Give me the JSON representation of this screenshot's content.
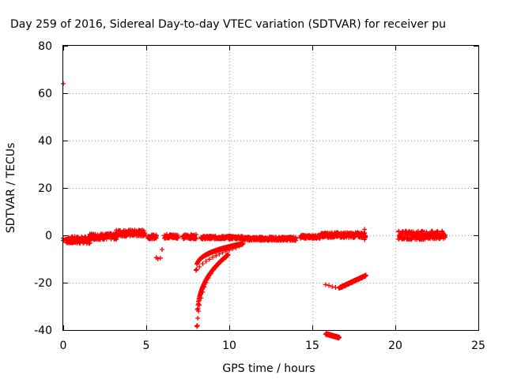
{
  "chart_data": {
    "type": "scatter",
    "title": "Day 259 of 2016, Sidereal Day-to-day VTEC variation (SDTVAR) for receiver pu",
    "xlabel": "GPS time / hours",
    "ylabel": "SDTVAR / TECUs",
    "xlim": [
      0,
      25
    ],
    "ylim": [
      -40,
      80
    ],
    "xticks": [
      0,
      5,
      10,
      15,
      20,
      25
    ],
    "yticks": [
      -40,
      -20,
      0,
      20,
      40,
      60,
      80
    ],
    "xtick_labels": [
      "0",
      "5",
      "10",
      "15",
      "20",
      "25"
    ],
    "ytick_labels": [
      "-40",
      "-20",
      "0",
      "20",
      "40",
      "60",
      "80"
    ],
    "grid": true,
    "legend": "none",
    "marker": "plus",
    "color": "#ff0000",
    "series": [
      {
        "points": [
          [
            0.0,
            64
          ],
          [
            0.0,
            -1.2
          ],
          [
            0.0,
            -2.2
          ],
          [
            0.05,
            -2.0
          ],
          [
            0.15,
            -1.5
          ],
          [
            0.3,
            -2.6
          ],
          [
            0.45,
            -1.2
          ],
          [
            0.6,
            -3.0
          ],
          [
            0.8,
            -2.4
          ],
          [
            1.0,
            -2.9
          ],
          [
            1.2,
            -3.3
          ],
          [
            1.4,
            -2.8
          ],
          [
            1.5,
            -1.8
          ],
          [
            1.7,
            -1.0
          ],
          [
            1.9,
            -0.5
          ],
          [
            2.1,
            -0.8
          ],
          [
            2.3,
            -0.4
          ],
          [
            2.5,
            0.2
          ],
          [
            2.7,
            -0.5
          ],
          [
            2.9,
            -0.2
          ],
          [
            3.1,
            0.3
          ],
          [
            3.3,
            1.2
          ],
          [
            3.5,
            0.5
          ],
          [
            3.7,
            0.8
          ],
          [
            3.9,
            0.3
          ],
          [
            4.1,
            0.9
          ],
          [
            4.3,
            1.4
          ],
          [
            4.5,
            1.1
          ],
          [
            4.7,
            1.6
          ],
          [
            4.85,
            1.9
          ],
          [
            5.2,
            -0.8
          ],
          [
            5.35,
            -1.3
          ],
          [
            5.5,
            -0.6
          ],
          [
            5.6,
            -9.4
          ],
          [
            5.7,
            -9.9
          ],
          [
            5.85,
            -9.6
          ],
          [
            5.95,
            -6.0
          ],
          [
            6.2,
            -0.5
          ],
          [
            6.4,
            -0.2
          ],
          [
            6.6,
            -0.9
          ],
          [
            6.8,
            -0.3
          ],
          [
            7.3,
            -0.6
          ],
          [
            7.5,
            -1.0
          ],
          [
            7.7,
            -0.4
          ],
          [
            7.9,
            -0.8
          ],
          [
            8.4,
            -0.6
          ],
          [
            8.6,
            -0.8
          ],
          [
            8.8,
            -1.0
          ],
          [
            9.0,
            -0.9
          ],
          [
            9.2,
            -1.1
          ],
          [
            9.4,
            -0.9
          ],
          [
            9.6,
            -1.2
          ],
          [
            9.8,
            -1.0
          ],
          [
            10.0,
            -1.3
          ],
          [
            10.2,
            -1.0
          ],
          [
            10.4,
            -1.2
          ],
          [
            10.6,
            -0.8
          ],
          [
            10.8,
            -1.1
          ],
          [
            11.0,
            -0.9
          ],
          [
            11.2,
            -1.3
          ],
          [
            11.4,
            -1.0
          ],
          [
            11.6,
            -1.4
          ],
          [
            11.8,
            -1.2
          ],
          [
            12.0,
            -1.5
          ],
          [
            12.2,
            -1.3
          ],
          [
            12.4,
            -1.6
          ],
          [
            12.6,
            -1.8
          ],
          [
            12.8,
            -1.5
          ],
          [
            13.0,
            -1.4
          ],
          [
            13.2,
            -1.1
          ],
          [
            13.4,
            -0.9
          ],
          [
            13.6,
            -1.2
          ],
          [
            13.8,
            -1.0
          ],
          [
            14.4,
            -0.9
          ],
          [
            14.6,
            -0.7
          ],
          [
            14.8,
            -0.5
          ],
          [
            15.0,
            -0.6
          ],
          [
            15.2,
            -0.4
          ],
          [
            15.4,
            -0.5
          ],
          [
            15.6,
            -0.1
          ],
          [
            15.8,
            0.2
          ],
          [
            16.0,
            -0.2
          ],
          [
            16.2,
            0.3
          ],
          [
            16.4,
            0.1
          ],
          [
            16.6,
            0.4
          ],
          [
            16.8,
            0.2
          ],
          [
            17.0,
            0.5
          ],
          [
            17.2,
            0.3
          ],
          [
            17.4,
            0.6
          ],
          [
            17.6,
            0.4
          ],
          [
            17.8,
            0.8
          ],
          [
            18.0,
            0.7
          ],
          [
            18.15,
            2.5
          ],
          [
            18.15,
            -1.8
          ],
          [
            8.05,
            -38.2
          ],
          [
            8.1,
            -35.0
          ],
          [
            8.15,
            -32.0
          ],
          [
            8.2,
            -29.5
          ],
          [
            8.3,
            -26.5
          ],
          [
            8.4,
            -24.0
          ],
          [
            8.5,
            -21.8
          ],
          [
            8.6,
            -20.0
          ],
          [
            8.75,
            -18.0
          ],
          [
            8.9,
            -16.2
          ],
          [
            9.05,
            -14.6
          ],
          [
            9.2,
            -13.3
          ],
          [
            9.35,
            -12.2
          ],
          [
            9.5,
            -11.1
          ],
          [
            9.65,
            -10.2
          ],
          [
            9.8,
            -9.3
          ],
          [
            8.0,
            -14.6
          ],
          [
            8.2,
            -13.3
          ],
          [
            8.4,
            -12.0
          ],
          [
            8.6,
            -11.0
          ],
          [
            8.8,
            -10.1
          ],
          [
            9.0,
            -9.3
          ],
          [
            9.2,
            -8.6
          ],
          [
            9.4,
            -7.9
          ],
          [
            9.6,
            -7.3
          ],
          [
            9.8,
            -6.7
          ],
          [
            10.0,
            -6.2
          ],
          [
            10.2,
            -5.7
          ],
          [
            10.4,
            -5.2
          ],
          [
            10.6,
            -4.6
          ],
          [
            10.75,
            -4.0
          ],
          [
            15.8,
            -20.8
          ],
          [
            16.0,
            -21.2
          ],
          [
            16.2,
            -21.7
          ],
          [
            16.4,
            -22.0
          ],
          [
            16.6,
            -22.3
          ],
          [
            16.8,
            -22.0
          ],
          [
            17.0,
            -21.4
          ],
          [
            17.2,
            -20.7
          ],
          [
            17.4,
            -20.0
          ],
          [
            17.6,
            -19.3
          ],
          [
            17.8,
            -18.7
          ],
          [
            18.0,
            -18.0
          ],
          [
            18.2,
            -17.3
          ],
          [
            20.2,
            1.5
          ],
          [
            20.4,
            1.2
          ],
          [
            20.6,
            0.8
          ],
          [
            20.8,
            0.3
          ],
          [
            21.0,
            -0.2
          ],
          [
            21.2,
            -0.7
          ],
          [
            21.4,
            -1.3
          ],
          [
            21.6,
            -1.5
          ],
          [
            21.8,
            -1.1
          ],
          [
            22.0,
            -0.9
          ],
          [
            22.2,
            -0.7
          ],
          [
            22.4,
            -0.5
          ],
          [
            22.6,
            -0.3
          ],
          [
            22.8,
            -0.2
          ],
          [
            22.95,
            -0.1
          ]
        ],
        "bands": [
          {
            "x": [
              0.2,
              1.6
            ],
            "y_low": -3.5,
            "y_high": -0.5
          },
          {
            "x": [
              1.6,
              3.2
            ],
            "y_low": -1.8,
            "y_high": 0.8
          },
          {
            "x": [
              3.2,
              4.9
            ],
            "y_low": -0.5,
            "y_high": 2.3
          },
          {
            "x": [
              5.1,
              5.6
            ],
            "y_low": -1.5,
            "y_high": 0.2
          },
          {
            "x": [
              6.1,
              6.9
            ],
            "y_low": -1.3,
            "y_high": 0.5
          },
          {
            "x": [
              7.2,
              8.0
            ],
            "y_low": -1.5,
            "y_high": 0.3
          },
          {
            "x": [
              8.3,
              10.8
            ],
            "y_low": -1.6,
            "y_high": -0.3
          },
          {
            "x": [
              10.8,
              14.0
            ],
            "y_low": -2.2,
            "y_high": -0.7
          },
          {
            "x": [
              14.3,
              15.5
            ],
            "y_low": -1.3,
            "y_high": 0.0
          },
          {
            "x": [
              15.5,
              18.2
            ],
            "y_low": -1.0,
            "y_high": 1.2
          },
          {
            "x": [
              20.2,
              23.0
            ],
            "y_low": -1.8,
            "y_high": 1.8
          }
        ],
        "curves": [
          {
            "x": [
              8.05,
              9.9
            ],
            "y": [
              -38.5,
              -8.5
            ],
            "shape": "sqrt"
          },
          {
            "x": [
              8.0,
              10.8
            ],
            "y": [
              -14.8,
              -3.8
            ],
            "shape": "sqrt"
          },
          {
            "x": [
              15.8,
              18.2
            ],
            "y": [
              -22.4,
              -17.2
            ],
            "shape": "dip",
            "min_x": 16.6
          }
        ]
      }
    ]
  }
}
